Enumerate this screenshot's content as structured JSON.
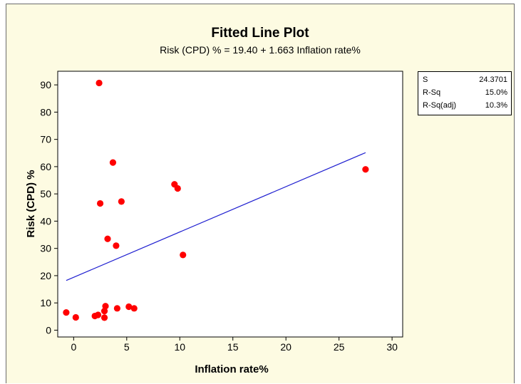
{
  "chart_data": {
    "type": "scatter",
    "title": "Fitted Line Plot",
    "subtitle": "Risk (CPD) % =  19.40 + 1.663 Inflation rate%",
    "xlabel": "Inflation rate%",
    "ylabel": "Risk (CPD) %",
    "xlim": [
      -1.5,
      31
    ],
    "ylim": [
      -2.5,
      95
    ],
    "x_ticks": [
      0,
      5,
      10,
      15,
      20,
      25,
      30
    ],
    "y_ticks": [
      0,
      10,
      20,
      30,
      40,
      50,
      60,
      70,
      80,
      90
    ],
    "grid": false,
    "points": [
      {
        "x": -0.7,
        "y": 6.5
      },
      {
        "x": 0.2,
        "y": 4.7
      },
      {
        "x": 2.0,
        "y": 5.2
      },
      {
        "x": 2.3,
        "y": 5.6
      },
      {
        "x": 2.4,
        "y": 90.7
      },
      {
        "x": 2.5,
        "y": 46.5
      },
      {
        "x": 2.9,
        "y": 4.6
      },
      {
        "x": 2.9,
        "y": 7.0
      },
      {
        "x": 3.0,
        "y": 8.8
      },
      {
        "x": 3.2,
        "y": 33.5
      },
      {
        "x": 3.7,
        "y": 61.5
      },
      {
        "x": 4.0,
        "y": 31.0
      },
      {
        "x": 4.1,
        "y": 8.0
      },
      {
        "x": 4.5,
        "y": 47.2
      },
      {
        "x": 5.2,
        "y": 8.6
      },
      {
        "x": 5.7,
        "y": 8.0
      },
      {
        "x": 9.5,
        "y": 53.5
      },
      {
        "x": 9.8,
        "y": 52.0
      },
      {
        "x": 10.3,
        "y": 27.6
      },
      {
        "x": 27.5,
        "y": 59.0
      }
    ],
    "fit_line": {
      "intercept": 19.4,
      "slope": 1.663,
      "x_range": [
        -0.7,
        27.5
      ]
    },
    "colors": {
      "points": "#ff0000",
      "fit_line": "#1f1fd0",
      "background": "#fdfbe2",
      "plot_area": "#ffffff"
    }
  },
  "stats": [
    {
      "label": "S",
      "value": "24.3701"
    },
    {
      "label": "R-Sq",
      "value": "15.0%"
    },
    {
      "label": "R-Sq(adj)",
      "value": "10.3%"
    }
  ]
}
